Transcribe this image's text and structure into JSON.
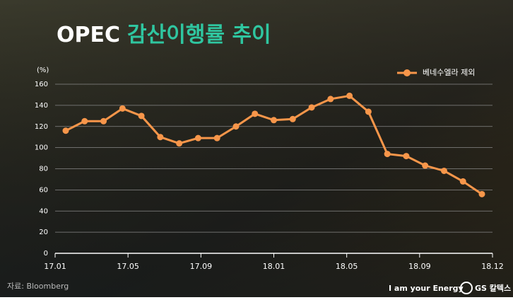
{
  "chart_data": {
    "type": "line",
    "title": {
      "main": "OPEC",
      "highlight": "감산이행률 추이"
    },
    "y_unit": "(%)",
    "x_labels": [
      "17.01",
      "17.05",
      "17.09",
      "18.01",
      "18.05",
      "18.09",
      "18.12"
    ],
    "series": [
      {
        "name": "베네수엘라 제외",
        "color": "#f7964a",
        "values": [
          116,
          125,
          125,
          137,
          130,
          110,
          104,
          109,
          109,
          120,
          132,
          126,
          127,
          138,
          146,
          149,
          134,
          94,
          92,
          83,
          78,
          68,
          56
        ]
      }
    ],
    "ylim": [
      0,
      160
    ],
    "yticks": [
      0,
      20,
      40,
      60,
      80,
      100,
      120,
      140,
      160
    ],
    "grid": true,
    "legend": "top-right",
    "source": "자료: Bloomberg",
    "footer": {
      "slogan": "I am your Energy",
      "brand": "GS 칼텍스"
    }
  }
}
